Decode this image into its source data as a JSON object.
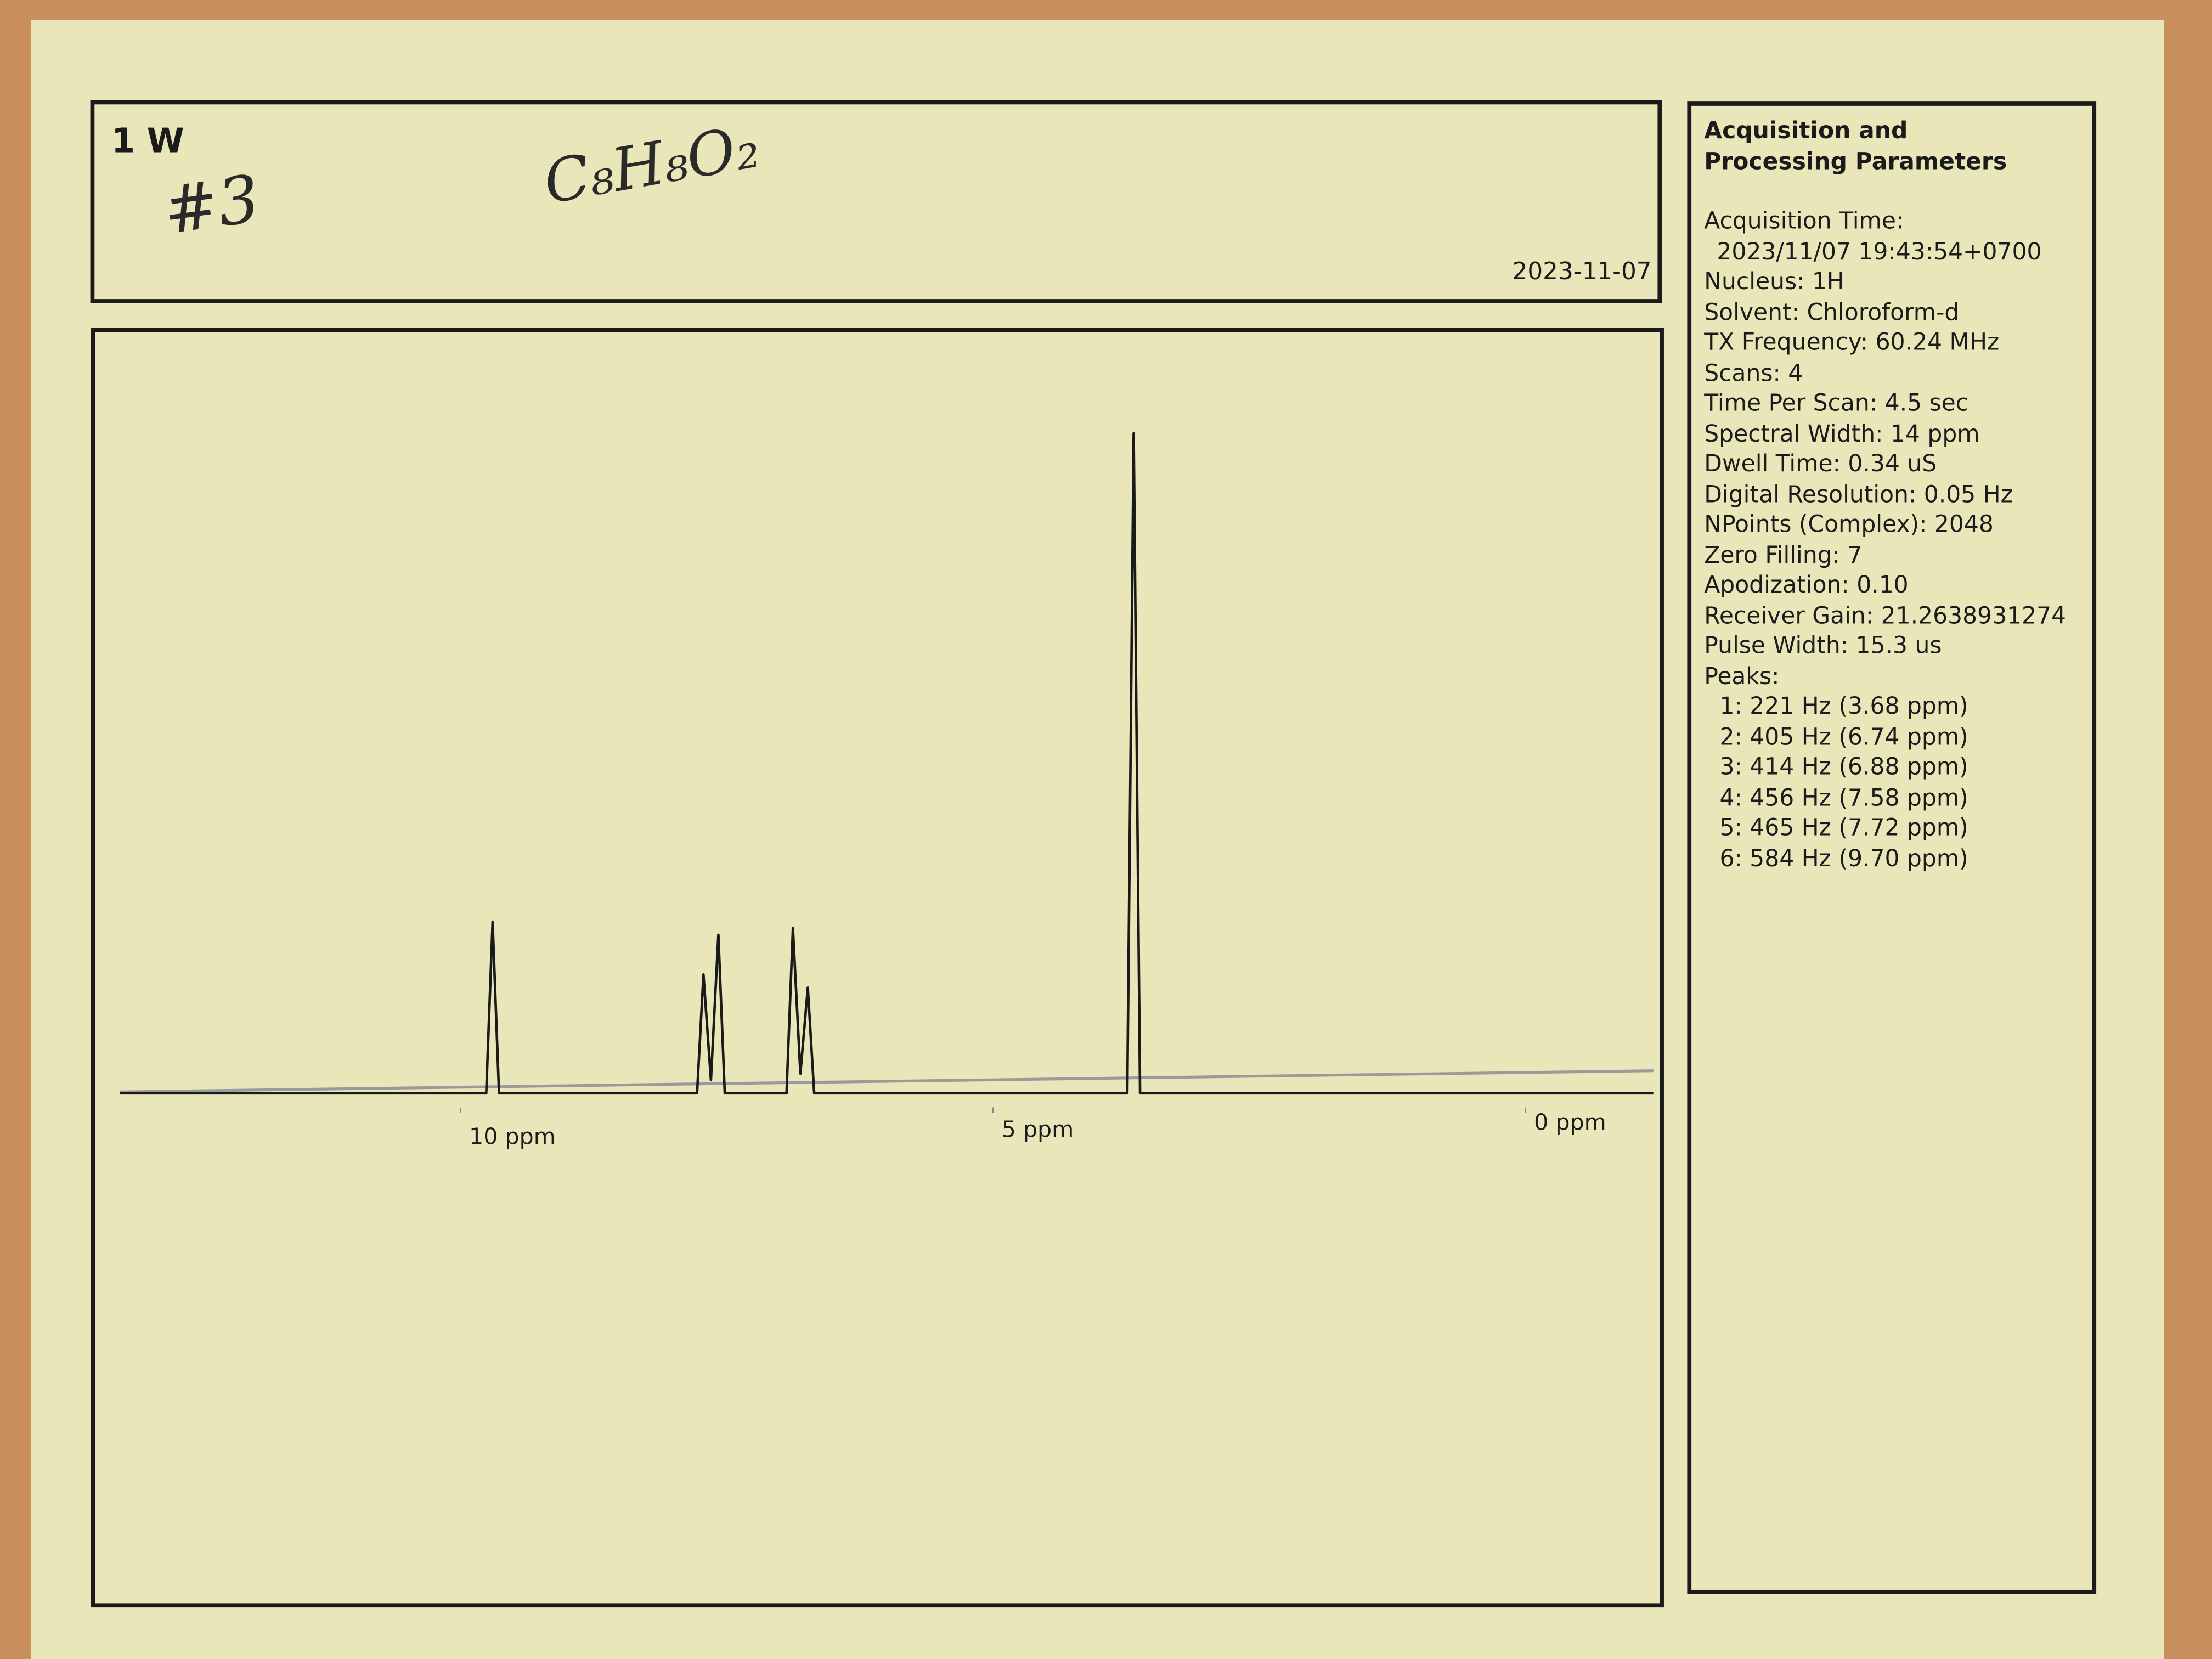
{
  "header": {
    "label": "1 W",
    "sample": "#3",
    "formula": "C₈H₈O₂",
    "date": "2023-11-07"
  },
  "parameters": {
    "title": "Acquisition and Processing Parameters",
    "lines": [
      "Acquisition Time:",
      "2023/11/07 19:43:54+0700",
      "Nucleus: 1H",
      "Solvent: Chloroform-d",
      "TX Frequency: 60.24 MHz",
      "Scans: 4",
      "Time Per Scan: 4.5 sec",
      "Spectral Width: 14 ppm",
      "Dwell Time: 0.34 uS",
      "Digital Resolution: 0.05 Hz",
      "NPoints (Complex): 2048",
      "Zero Filling: 7",
      "Apodization: 0.10",
      "Receiver Gain: 21.2638931274",
      "Pulse Width: 15.3 us",
      "Peaks:"
    ],
    "peaks": [
      "1:  221 Hz (3.68 ppm)",
      "2:  405 Hz (6.74 ppm)",
      "3:  414 Hz (6.88 ppm)",
      "4:  456 Hz (7.58 ppm)",
      "5:  465 Hz (7.72 ppm)",
      "6:  584 Hz (9.70 ppm)"
    ]
  },
  "chart_data": {
    "type": "line",
    "x": [
      13.2,
      9.76,
      9.7,
      9.64,
      7.78,
      7.72,
      7.65,
      7.58,
      7.52,
      6.94,
      6.88,
      6.81,
      6.74,
      6.68,
      3.74,
      3.68,
      3.62,
      -1.2
    ],
    "values": [
      0,
      0,
      26,
      0,
      0,
      18,
      2,
      24,
      0,
      0,
      25,
      3,
      16,
      0,
      0,
      100,
      0,
      0
    ],
    "color": "#1a1a1a",
    "xlim": [
      13.2,
      -1.2
    ],
    "ylim": [
      0,
      115
    ],
    "xticks": [
      {
        "value": 10,
        "label": "10 ppm"
      },
      {
        "value": 5,
        "label": "5 ppm"
      },
      {
        "value": 0,
        "label": "0 ppm"
      }
    ]
  }
}
